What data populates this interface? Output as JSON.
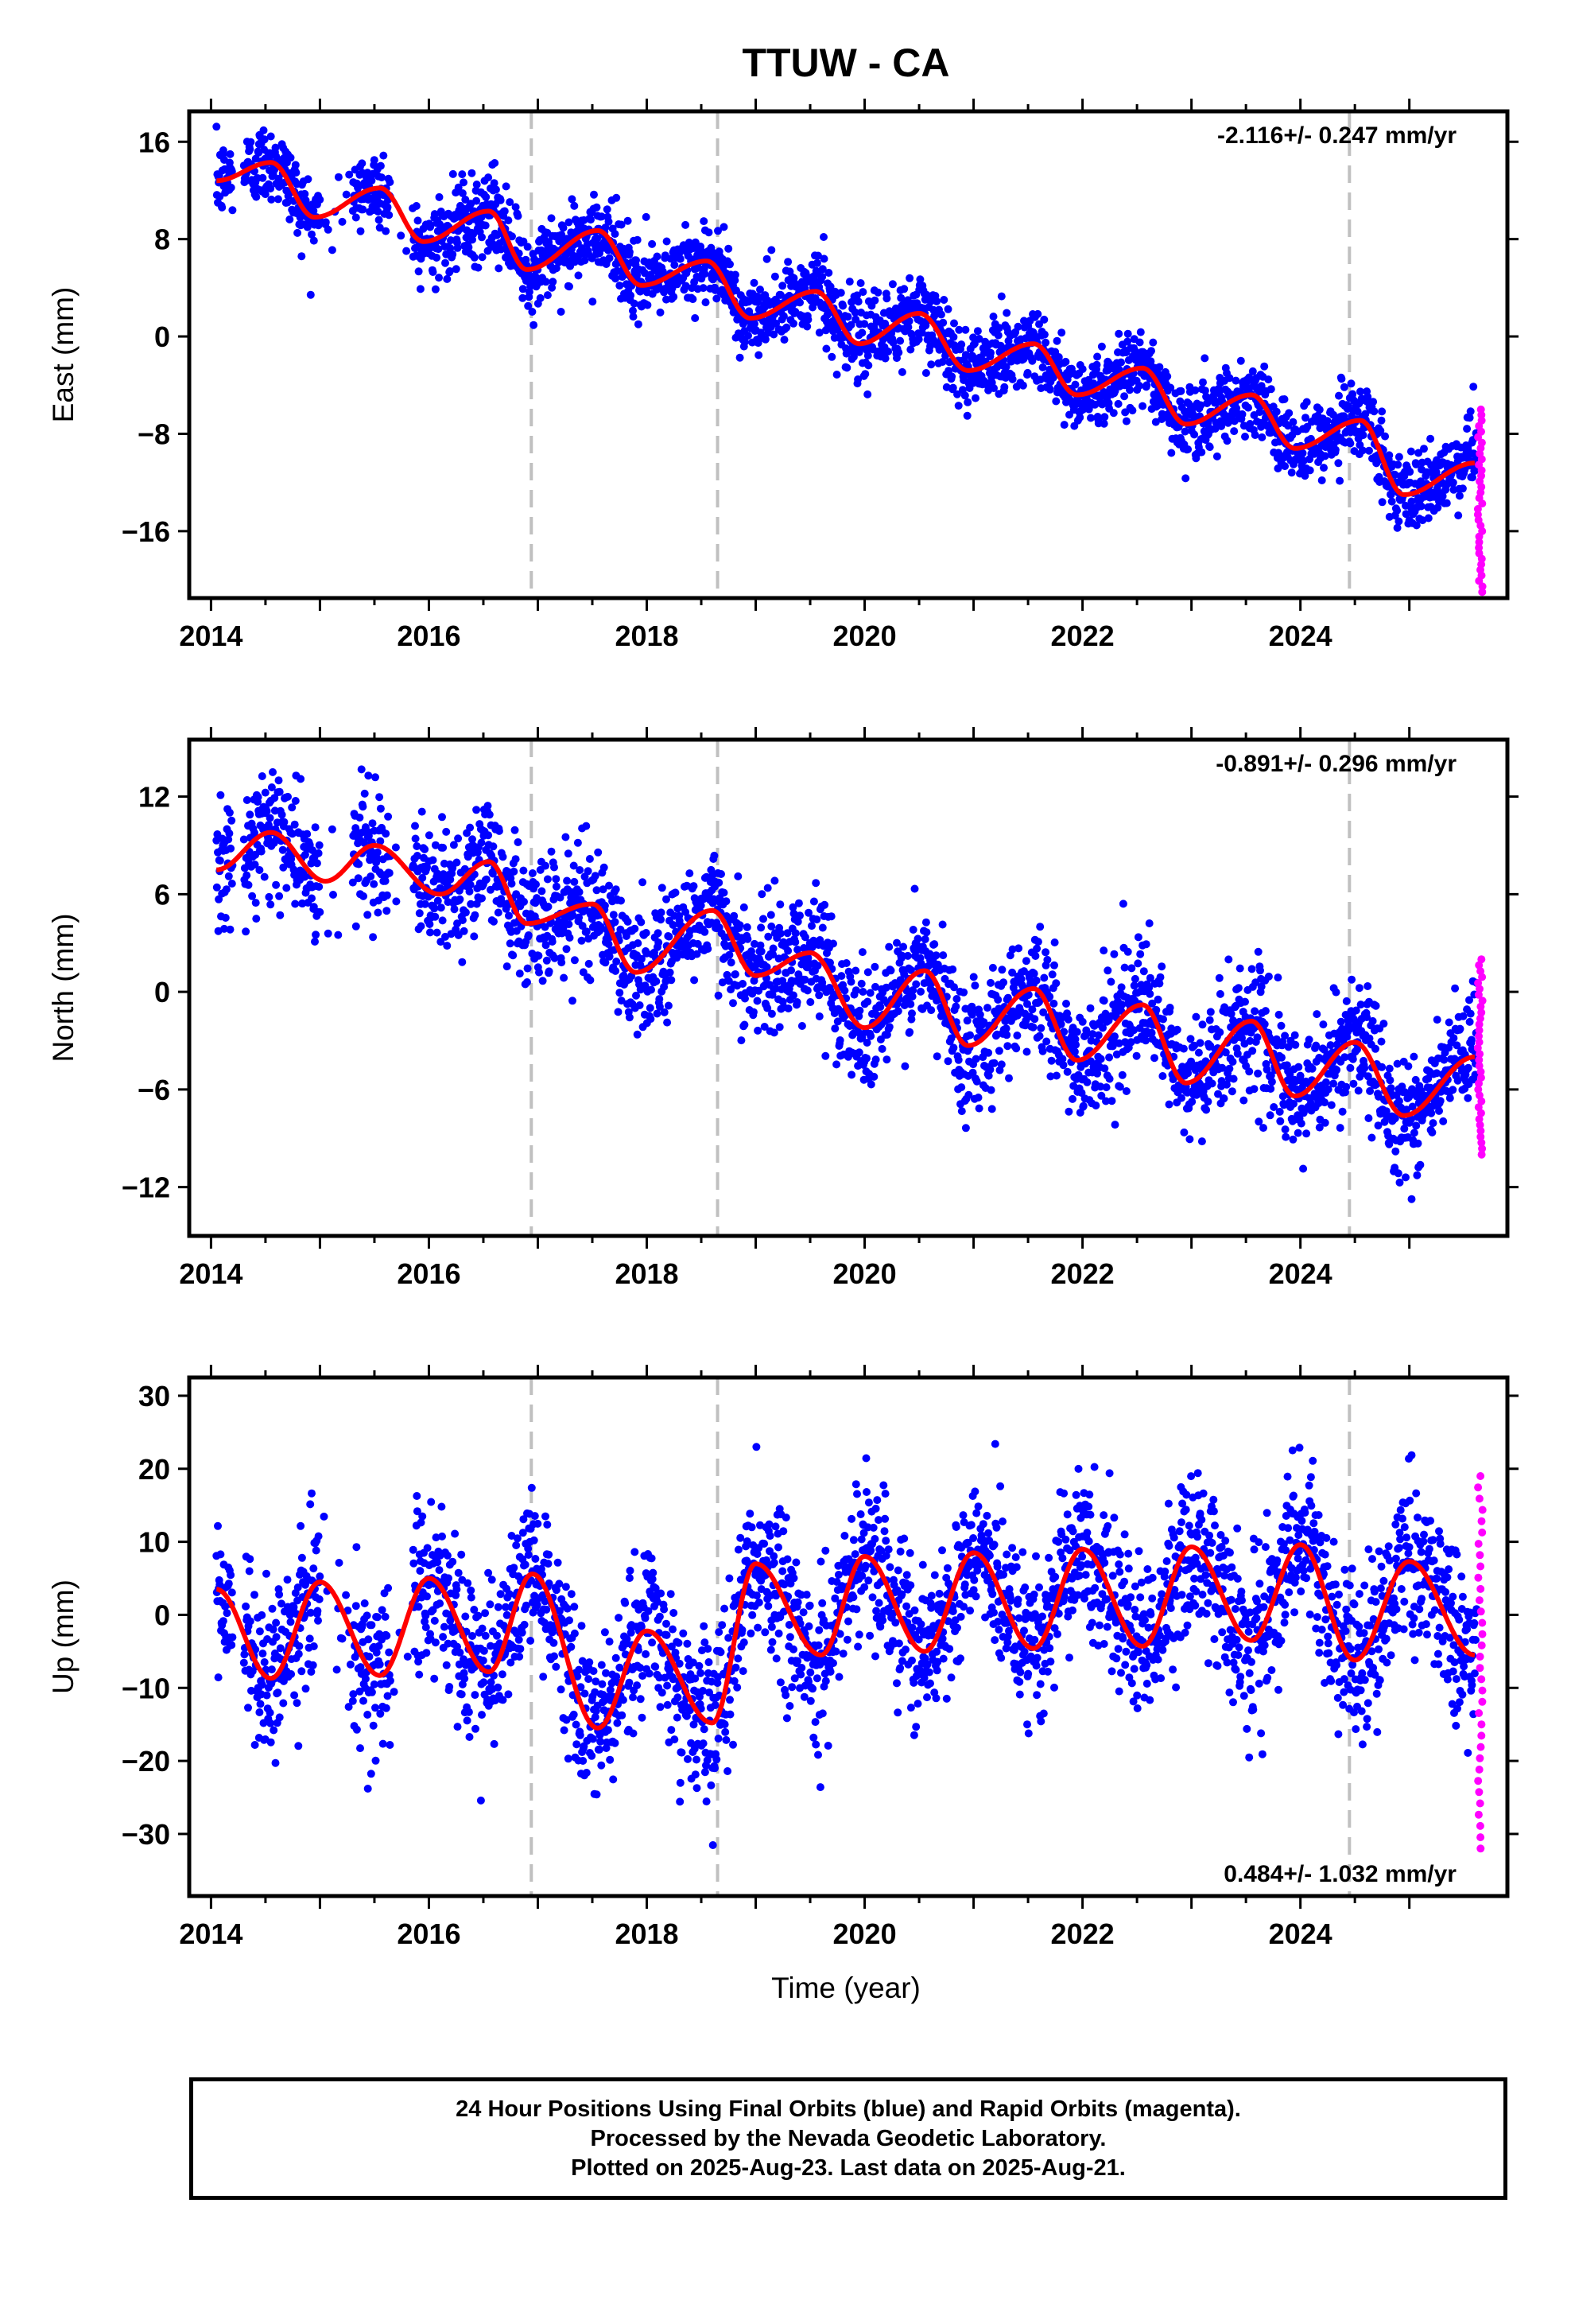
{
  "figure": {
    "title": "TTUW - CA",
    "xlabel": "Time (year)",
    "footer": [
      "24 Hour Positions Using Final Orbits (blue) and Rapid Orbits (magenta).",
      "Processed by the Nevada Geodetic Laboratory.",
      "Plotted on 2025-Aug-23. Last data on 2025-Aug-21."
    ],
    "colors": {
      "final": "#0000ff",
      "rapid": "#ff00ff",
      "model": "#ff0000",
      "events": "#c0c0c0"
    }
  },
  "chart_data": [
    {
      "type": "scatter",
      "ylabel": "East (mm)",
      "rate": "-2.116+/- 0.247 mm/yr",
      "rate_placement": "top-right",
      "xlim": [
        2013.8,
        2025.9
      ],
      "ylim": [
        -21.5,
        18.5
      ],
      "xticks": [
        2014,
        2016,
        2018,
        2020,
        2022,
        2024
      ],
      "yticks": [
        16,
        8,
        0,
        -8,
        -16
      ],
      "ytick_labels": [
        "16",
        "8",
        "0",
        "−8",
        "−16"
      ],
      "event_lines": [
        2016.94,
        2018.65,
        2024.45
      ],
      "trend": {
        "t0": 2014.05,
        "y0": 13.5,
        "rate": -2.116
      },
      "annual_amp": 1.6,
      "annual_phase": 0.15,
      "semiannual_amp": 0.6,
      "scatter_sigma": 1.6,
      "offsets": [],
      "model_points": [
        [
          2014.05,
          12.8
        ],
        [
          2014.55,
          14.3
        ],
        [
          2014.95,
          9.8
        ],
        [
          2015.55,
          12.2
        ],
        [
          2015.95,
          7.8
        ],
        [
          2016.55,
          10.3
        ],
        [
          2016.9,
          5.5
        ],
        [
          2017.55,
          8.7
        ],
        [
          2017.95,
          4.2
        ],
        [
          2018.55,
          6.2
        ],
        [
          2018.95,
          1.5
        ],
        [
          2019.55,
          3.7
        ],
        [
          2019.95,
          -0.6
        ],
        [
          2020.5,
          1.9
        ],
        [
          2020.95,
          -2.8
        ],
        [
          2021.55,
          -0.6
        ],
        [
          2021.95,
          -4.8
        ],
        [
          2022.55,
          -2.6
        ],
        [
          2022.95,
          -7.2
        ],
        [
          2023.55,
          -4.8
        ],
        [
          2023.95,
          -9.2
        ],
        [
          2024.55,
          -6.9
        ],
        [
          2024.95,
          -13.0
        ],
        [
          2025.6,
          -10.4
        ]
      ],
      "rapid": {
        "x": 2025.65,
        "ymin": -21.0,
        "ymax": -6.0
      },
      "gaps": [
        [
          2014.2,
          2014.3
        ],
        [
          2015.0,
          2015.3
        ],
        [
          2015.65,
          2015.85
        ]
      ]
    },
    {
      "type": "scatter",
      "ylabel": "North (mm)",
      "rate": "-0.891+/- 0.296 mm/yr",
      "rate_placement": "top-right",
      "xlim": [
        2013.8,
        2025.9
      ],
      "ylim": [
        -15.0,
        15.5
      ],
      "xticks": [
        2014,
        2016,
        2018,
        2020,
        2022,
        2024
      ],
      "yticks": [
        12,
        6,
        0,
        -6,
        -12
      ],
      "ytick_labels": [
        "12",
        "6",
        "0",
        "−6",
        "−12"
      ],
      "event_lines": [
        2016.94,
        2018.65,
        2024.45
      ],
      "trend": {
        "t0": 2014.05,
        "y0": 7.3,
        "rate": -0.891
      },
      "annual_amp": 2.2,
      "annual_phase": 0.5,
      "semiannual_amp": 0.8,
      "scatter_sigma": 1.9,
      "offsets": [],
      "model_points": [
        [
          2014.05,
          7.5
        ],
        [
          2014.55,
          9.8
        ],
        [
          2015.05,
          6.8
        ],
        [
          2015.5,
          9.0
        ],
        [
          2016.1,
          6.0
        ],
        [
          2016.55,
          8.0
        ],
        [
          2016.9,
          4.2
        ],
        [
          2017.5,
          5.4
        ],
        [
          2017.9,
          1.2
        ],
        [
          2018.6,
          5.0
        ],
        [
          2019.0,
          1.0
        ],
        [
          2019.5,
          2.4
        ],
        [
          2020.0,
          -2.2
        ],
        [
          2020.55,
          1.3
        ],
        [
          2020.95,
          -3.3
        ],
        [
          2021.55,
          0.2
        ],
        [
          2021.95,
          -4.2
        ],
        [
          2022.55,
          -0.8
        ],
        [
          2022.95,
          -5.6
        ],
        [
          2023.55,
          -1.8
        ],
        [
          2023.95,
          -6.4
        ],
        [
          2024.5,
          -3.1
        ],
        [
          2024.95,
          -7.6
        ],
        [
          2025.6,
          -4.0
        ]
      ],
      "rapid": {
        "x": 2025.65,
        "ymin": -10.0,
        "ymax": 2.0
      },
      "gaps": [
        [
          2014.2,
          2014.3
        ],
        [
          2015.0,
          2015.3
        ],
        [
          2015.65,
          2015.85
        ]
      ]
    },
    {
      "type": "scatter",
      "ylabel": "Up (mm)",
      "rate": "0.484+/- 1.032 mm/yr",
      "rate_placement": "bottom-right",
      "xlim": [
        2013.8,
        2025.9
      ],
      "ylim": [
        -38.5,
        32.5
      ],
      "xticks": [
        2014,
        2016,
        2018,
        2020,
        2022,
        2024
      ],
      "yticks": [
        30,
        20,
        10,
        0,
        -10,
        -20,
        -30
      ],
      "ytick_labels": [
        "30",
        "20",
        "10",
        "0",
        "−10",
        "−20",
        "−30"
      ],
      "event_lines": [
        2016.94,
        2018.65,
        2024.45
      ],
      "trend": {
        "t0": 2014.05,
        "y0": -2.0,
        "rate": 0.484
      },
      "annual_amp": 7.0,
      "annual_phase": 0.75,
      "semiannual_amp": 1.0,
      "scatter_sigma": 5.5,
      "offsets": [],
      "model_points": [
        [
          2014.05,
          3.5
        ],
        [
          2014.55,
          -8.7
        ],
        [
          2015.0,
          4.5
        ],
        [
          2015.55,
          -8.3
        ],
        [
          2016.0,
          5.0
        ],
        [
          2016.55,
          -7.8
        ],
        [
          2016.95,
          5.6
        ],
        [
          2017.55,
          -15.5
        ],
        [
          2018.0,
          -2.2
        ],
        [
          2018.6,
          -14.8
        ],
        [
          2019.0,
          7.0
        ],
        [
          2019.6,
          -5.5
        ],
        [
          2020.0,
          8.0
        ],
        [
          2020.55,
          -5.0
        ],
        [
          2021.0,
          8.5
        ],
        [
          2021.55,
          -4.6
        ],
        [
          2022.0,
          9.0
        ],
        [
          2022.55,
          -4.3
        ],
        [
          2023.0,
          9.3
        ],
        [
          2023.55,
          -3.5
        ],
        [
          2024.0,
          9.6
        ],
        [
          2024.5,
          -6.2
        ],
        [
          2025.0,
          7.3
        ],
        [
          2025.6,
          -5.5
        ]
      ],
      "rapid": {
        "x": 2025.65,
        "ymin": -32.0,
        "ymax": 19.0
      },
      "gaps": [
        [
          2014.2,
          2014.3
        ],
        [
          2015.0,
          2015.3
        ],
        [
          2015.65,
          2015.85
        ]
      ]
    }
  ]
}
